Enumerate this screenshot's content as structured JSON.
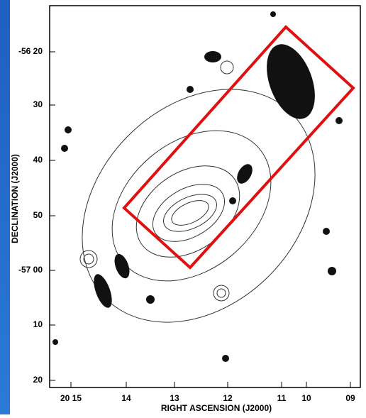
{
  "figure": {
    "y_axis_label": "DECLINATION (J2000)",
    "x_axis_label": "RIGHT ASCENSION (J2000)",
    "y_ticks": [
      "-56 20",
      "30",
      "40",
      "50",
      "-57 00",
      "10",
      "20"
    ],
    "x_ticks": [
      "20 15",
      "14",
      "13",
      "12",
      "11",
      "10",
      "09"
    ]
  }
}
